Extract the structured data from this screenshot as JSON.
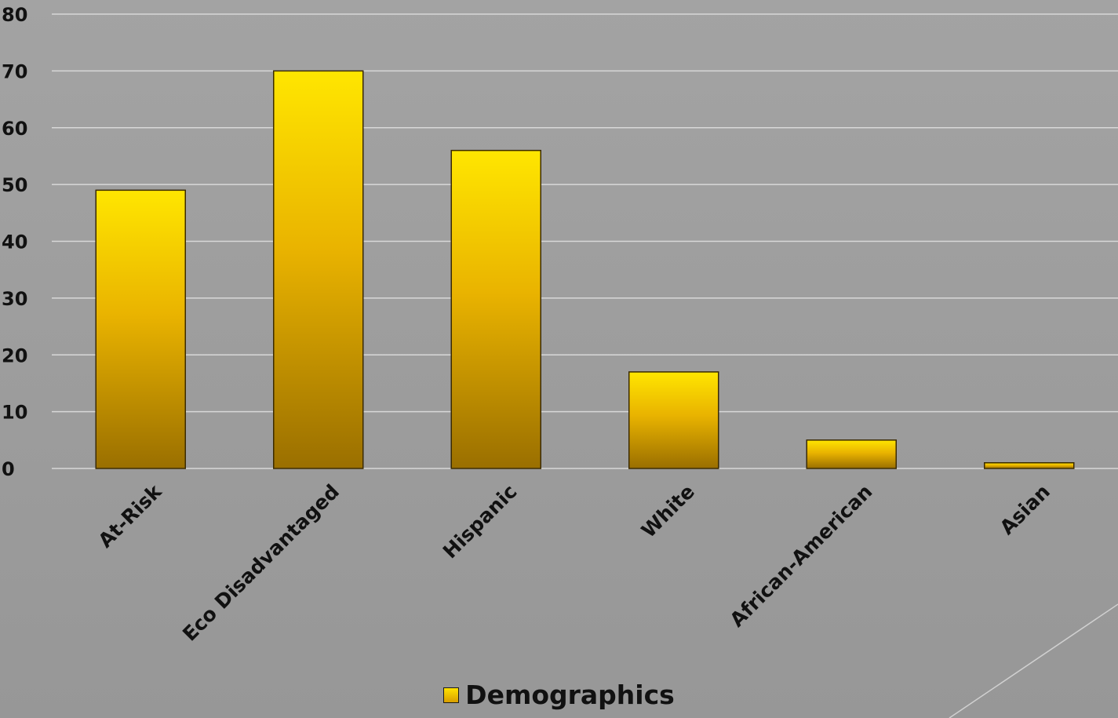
{
  "chart_data": {
    "type": "bar",
    "categories": [
      "At-Risk",
      "Eco Disadvantaged",
      "Hispanic",
      "White",
      "African-American",
      "Asian"
    ],
    "series": [
      {
        "name": "Demographics",
        "values": [
          49,
          70,
          56,
          17,
          5,
          1
        ]
      }
    ],
    "ylim": [
      0,
      80
    ],
    "yticks": [
      0,
      10,
      20,
      30,
      40,
      50,
      60,
      70,
      80
    ],
    "grid": true,
    "legend": "bottom-center"
  },
  "colors": {
    "bar_top": "#ffe600",
    "bar_bottom": "#9a6f00",
    "gridline": "#d8d8d8",
    "text": "#111111"
  }
}
